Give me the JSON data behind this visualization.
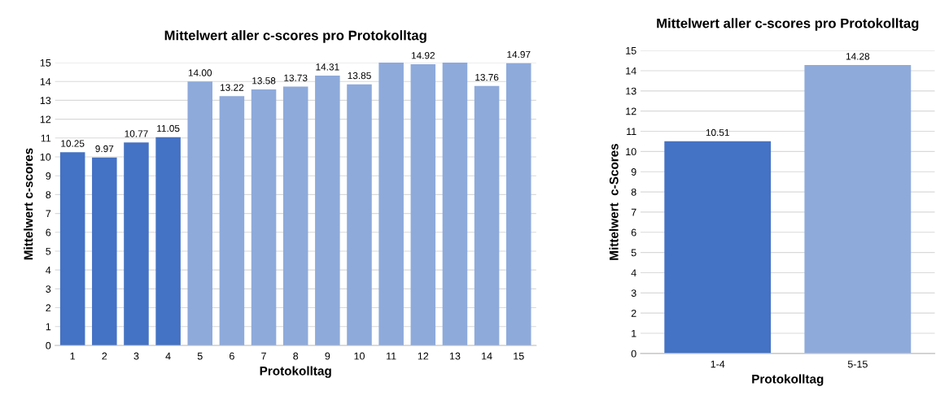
{
  "chart_data": [
    {
      "type": "bar",
      "title": "Mittelwert aller c-scores pro Protokolltag",
      "xlabel": "Protokolltag",
      "ylabel": "Mittelwert c-scores",
      "categories": [
        "1",
        "2",
        "3",
        "4",
        "5",
        "6",
        "7",
        "8",
        "9",
        "10",
        "11",
        "12",
        "13",
        "14",
        "15"
      ],
      "values": [
        10.25,
        9.97,
        10.77,
        11.05,
        14.0,
        13.22,
        13.58,
        13.73,
        14.31,
        13.85,
        15,
        14.92,
        15,
        13.76,
        14.97
      ],
      "value_labels": [
        "10.25",
        "9.97",
        "10.77",
        "11.05",
        "14.00",
        "13.22",
        "13.58",
        "13.73",
        "14.31",
        "13.85",
        null,
        "14.92",
        null,
        "13.76",
        "14.97"
      ],
      "colors": [
        "#4472c4",
        "#4472c4",
        "#4472c4",
        "#4472c4",
        "#8eaadb",
        "#8eaadb",
        "#8eaadb",
        "#8eaadb",
        "#8eaadb",
        "#8eaadb",
        "#8eaadb",
        "#8eaadb",
        "#8eaadb",
        "#8eaadb",
        "#8eaadb"
      ],
      "ylim": [
        0,
        15
      ],
      "yticks": [
        0,
        1,
        2,
        3,
        4,
        5,
        6,
        7,
        8,
        9,
        10,
        11,
        12,
        13,
        14,
        15
      ],
      "grid": "y"
    },
    {
      "type": "bar",
      "title": "Mittelwert aller c-scores pro Protokolltag",
      "xlabel": "Protokolltag",
      "ylabel": "Mittelwert  c-Scores",
      "categories": [
        "1-4",
        "5-15"
      ],
      "values": [
        10.51,
        14.28
      ],
      "data_labels": true,
      "colors": [
        "#4472c4",
        "#8eaadb"
      ],
      "ylim": [
        0,
        15
      ],
      "yticks": [
        0,
        1,
        2,
        3,
        4,
        5,
        6,
        7,
        8,
        9,
        10,
        11,
        12,
        13,
        14,
        15
      ],
      "grid": "y"
    }
  ]
}
